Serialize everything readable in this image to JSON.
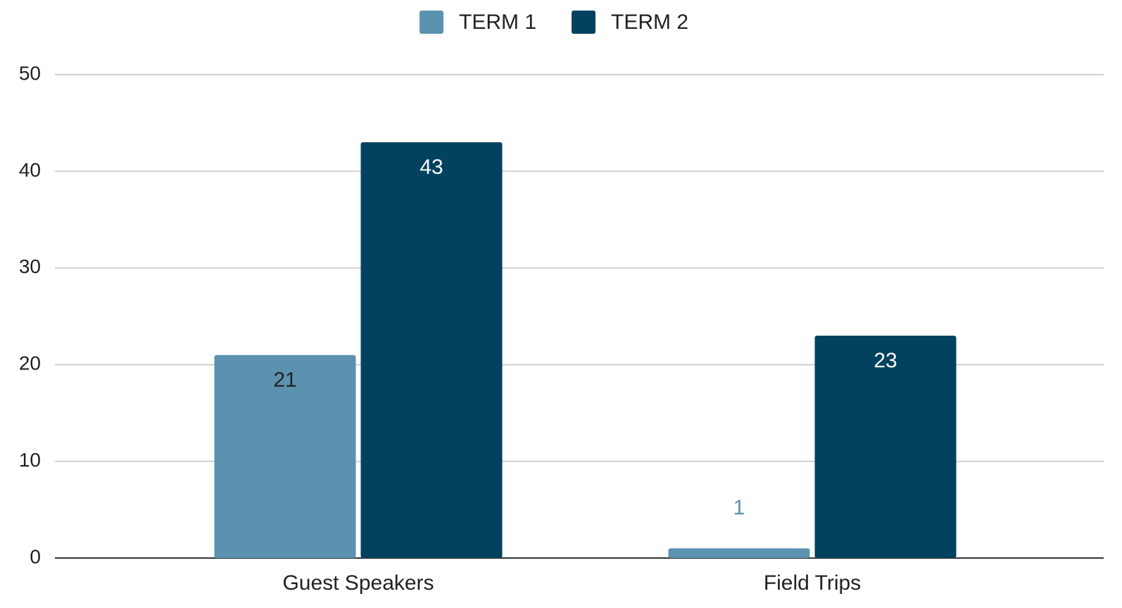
{
  "chart_data": {
    "type": "bar",
    "categories": [
      "Guest Speakers",
      "Field Trips"
    ],
    "series": [
      {
        "name": "TERM 1",
        "color": "#5b92b0",
        "label_color": "#222222",
        "values": [
          21,
          1
        ]
      },
      {
        "name": "TERM 2",
        "color": "#03425e",
        "label_color": "#ffffff",
        "values": [
          43,
          23
        ]
      }
    ],
    "ylim": [
      0,
      50
    ],
    "yticks": [
      0,
      10,
      20,
      30,
      40,
      50
    ],
    "grid": true,
    "legend": "top"
  }
}
